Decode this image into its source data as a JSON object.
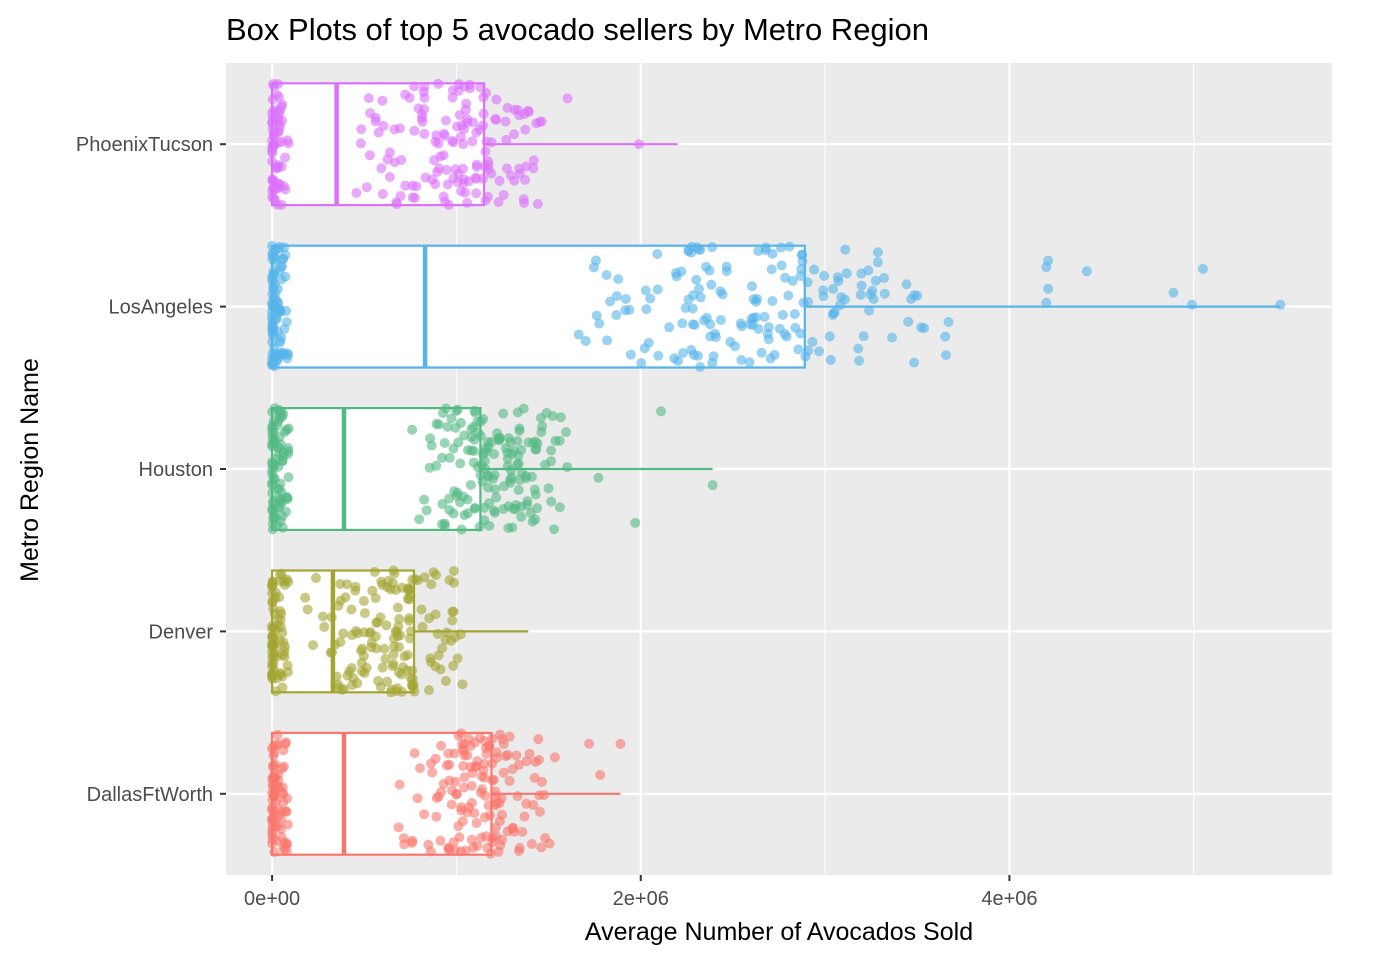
{
  "chart_data": {
    "type": "box",
    "orientation": "horizontal",
    "title": "Box Plots of top 5 avocado sellers by Metro Region",
    "xlabel": "Average Number of Avocados Sold",
    "ylabel": "Metro Region Name",
    "xlim": [
      -250000,
      5750000
    ],
    "x_ticks": [
      {
        "value": 0,
        "label": "0e+00"
      },
      {
        "value": 2000000,
        "label": "2e+06"
      },
      {
        "value": 4000000,
        "label": "4e+06"
      }
    ],
    "grid": true,
    "legend": "none",
    "overlay": "jittered points",
    "categories": [
      "PhoenixTucson",
      "LosAngeles",
      "Houston",
      "Denver",
      "DallasFtWorth"
    ],
    "series": [
      {
        "category": "PhoenixTucson",
        "color": "#DB72FB",
        "box": {
          "min": 0,
          "q1": 0,
          "median": 350000,
          "q3": 1150000,
          "max": 2200000
        },
        "outliers": [
          1990000
        ],
        "main_cluster": [
          380000,
          1650000
        ],
        "near_zero_count": 65,
        "cluster_count": 150
      },
      {
        "category": "LosAngeles",
        "color": "#56B4E9",
        "box": {
          "min": 0,
          "q1": 0,
          "median": 830000,
          "q3": 2890000,
          "max": 5470000
        },
        "outliers": [],
        "extra_points": [
          4200000,
          4200000,
          4210000,
          4210000,
          4420000,
          4890000,
          4990000,
          5050000,
          5470000
        ],
        "main_cluster": [
          1600000,
          3750000
        ],
        "near_zero_count": 90,
        "cluster_count": 170
      },
      {
        "category": "Houston",
        "color": "#53B983",
        "box": {
          "min": 0,
          "q1": 0,
          "median": 390000,
          "q3": 1130000,
          "max": 2390000
        },
        "outliers": [],
        "extra_points": [
          1770000,
          1970000,
          2110000,
          2390000
        ],
        "main_cluster": [
          750000,
          1650000
        ],
        "near_zero_count": 80,
        "cluster_count": 160
      },
      {
        "category": "Denver",
        "color": "#A3A533",
        "box": {
          "min": 0,
          "q1": 0,
          "median": 330000,
          "q3": 770000,
          "max": 1390000
        },
        "outliers": [],
        "main_cluster": [
          150000,
          1100000
        ],
        "near_zero_count": 70,
        "cluster_count": 150
      },
      {
        "category": "DallasFtWorth",
        "color": "#F8766D",
        "box": {
          "min": 0,
          "q1": 0,
          "median": 390000,
          "q3": 1190000,
          "max": 1890000
        },
        "outliers": [],
        "extra_points": [
          1720000,
          1780000,
          1890000
        ],
        "main_cluster": [
          650000,
          1600000
        ],
        "near_zero_count": 70,
        "cluster_count": 150
      }
    ]
  }
}
